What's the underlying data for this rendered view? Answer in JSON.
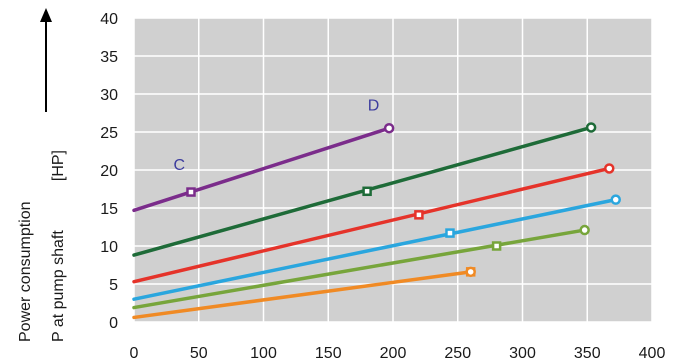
{
  "chart_data": {
    "type": "line",
    "ylabel_line1": "Power consumption",
    "ylabel_line2": "P at pump shaft",
    "ylabel_unit": "[HP]",
    "xlim": [
      0,
      400
    ],
    "ylim": [
      0,
      40
    ],
    "x_ticks": [
      "0",
      "50",
      "100",
      "150",
      "200",
      "250",
      "300",
      "350",
      "400"
    ],
    "y_ticks": [
      "0",
      "5",
      "10",
      "15",
      "20",
      "25",
      "30",
      "35",
      "40"
    ],
    "grid": true,
    "plot_background": "#d0d0d0",
    "grid_color": "#ffffff",
    "annotations": [
      {
        "text": "C",
        "x": 35,
        "y": 20.0,
        "color": "#3d3d9e"
      },
      {
        "text": "D",
        "x": 185,
        "y": 27.8,
        "color": "#3d3d9e"
      }
    ],
    "series": [
      {
        "color": "#7b2c8b",
        "marker": "square",
        "marker_x": 44,
        "marker_y": 17.1,
        "x": [
          0,
          197
        ],
        "y": [
          14.7,
          25.5
        ]
      },
      {
        "color": "#1e6b38",
        "marker": "square",
        "marker_x": 180,
        "marker_y": 17.2,
        "x": [
          0,
          353
        ],
        "y": [
          8.8,
          25.6
        ]
      },
      {
        "color": "#e5332a",
        "marker": "square",
        "marker_x": 220,
        "marker_y": 14.1,
        "x": [
          0,
          367
        ],
        "y": [
          5.3,
          20.2
        ]
      },
      {
        "color": "#2aa6de",
        "marker": "square",
        "marker_x": 244,
        "marker_y": 11.7,
        "x": [
          0,
          372
        ],
        "y": [
          3.0,
          16.1
        ]
      },
      {
        "color": "#77a53b",
        "marker": "square",
        "marker_x": 280,
        "marker_y": 10.0,
        "x": [
          0,
          348
        ],
        "y": [
          1.9,
          12.1
        ]
      },
      {
        "color": "#f08a24",
        "marker": "square",
        "marker_x": 260,
        "marker_y": 6.6,
        "x": [
          0,
          260
        ],
        "y": [
          0.6,
          6.6
        ]
      }
    ]
  }
}
